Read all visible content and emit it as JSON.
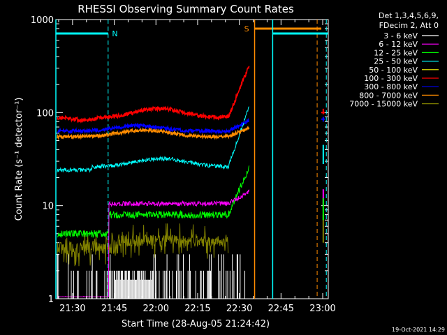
{
  "chart_data": {
    "type": "line",
    "title": "RHESSI Observing Summary Count Rates",
    "xlabel": "Start Time (28-Aug-05 21:24:42)",
    "ylabel": "Count Rate (s⁻¹ detector⁻¹)",
    "ylog": true,
    "ylim": [
      1,
      1000
    ],
    "xlim_minutes_after_2124": [
      0,
      98
    ],
    "x_tick_labels": [
      "21:30",
      "21:45",
      "22:00",
      "22:15",
      "22:30",
      "22:45",
      "23:00"
    ],
    "x_tick_minutes": [
      6,
      21,
      36,
      51,
      66,
      81,
      96
    ],
    "y_tick_labels": [
      "1",
      "10",
      "100",
      "1000"
    ],
    "y_tick_values": [
      1,
      10,
      100,
      1000
    ],
    "legend_header": [
      "Det 1,3,4,5,6,9,",
      "FDecim 2, Att 0"
    ],
    "legend_position": "right",
    "series": [
      {
        "name": "3 - 6 keV",
        "color": "#ffffff"
      },
      {
        "name": "6 - 12 keV",
        "color": "#ff00ff"
      },
      {
        "name": "12 - 25 keV",
        "color": "#00ff00"
      },
      {
        "name": "25 - 50 keV",
        "color": "#00ffff"
      },
      {
        "name": "50 - 100 keV",
        "color": "#ffff00"
      },
      {
        "name": "100 - 300 keV",
        "color": "#ff0000"
      },
      {
        "name": "300 - 800 keV",
        "color": "#0000ff"
      },
      {
        "name": "800 - 7000 keV",
        "color": "#ff8c00"
      },
      {
        "name": "7000 - 15000 keV",
        "color": "#808000"
      }
    ],
    "flags": [
      {
        "label": "N",
        "color": "#00ffff"
      },
      {
        "label": "S",
        "color": "#ff8c00"
      }
    ],
    "footer_date": "19-Oct-2021 14:29"
  }
}
